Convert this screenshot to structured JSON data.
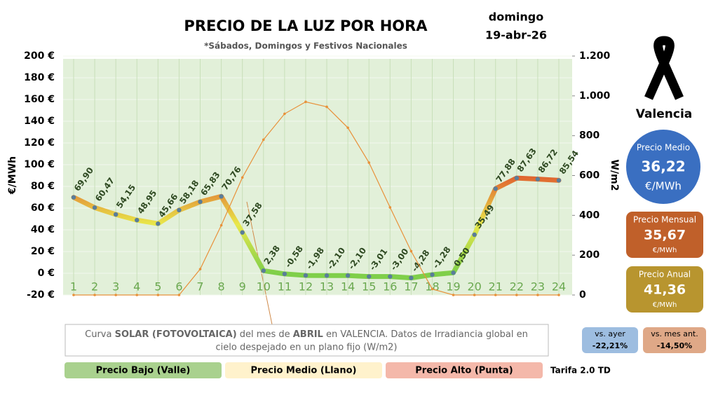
{
  "chart_data": {
    "type": "line",
    "title": "PRECIO DE LA LUZ POR HORA",
    "subtitle": "*Sábados, Domingos y Festivos Nacionales",
    "ylabel": "€/MWh",
    "y2label": "W/m2",
    "categories": [
      "1",
      "2",
      "3",
      "4",
      "5",
      "6",
      "7",
      "8",
      "9",
      "10",
      "11",
      "12",
      "13",
      "14",
      "15",
      "16",
      "17",
      "18",
      "19",
      "20",
      "21",
      "22",
      "23",
      "24"
    ],
    "series": [
      {
        "colors": [
          "#e0602e",
          "#e8e84a",
          "#7fcf4a"
        ],
        "values": [
          69.9,
          60.47,
          54.15,
          48.95,
          45.66,
          58.18,
          65.83,
          70.76,
          37.58,
          2.38,
          -0.58,
          -1.98,
          -2.1,
          -2.1,
          -3.01,
          -3.0,
          -4.28,
          -1.28,
          0.5,
          35.49,
          77.88,
          87.63,
          86.72,
          85.54
        ],
        "value_labels": [
          "69,90",
          "60,47",
          "54,15",
          "48,95",
          "45,66",
          "58,18",
          "65,83",
          "70,76",
          "37,58",
          "2,38",
          "-0,58",
          "-1,98",
          "-2,10",
          "-2,10",
          "-3,01",
          "-3,00",
          "-4,28",
          "-1,28",
          "0,50",
          "35,49",
          "77,88",
          "87,63",
          "86,72",
          "85,54"
        ]
      },
      {
        "axis": "y2",
        "color": "#e8913a",
        "values": [
          0,
          0,
          0,
          0,
          0,
          0,
          130,
          350,
          590,
          780,
          910,
          970,
          945,
          840,
          665,
          440,
          220,
          30,
          0,
          0,
          0,
          0,
          0,
          0
        ]
      }
    ],
    "ylim": [
      -20,
      200
    ],
    "yticks": [
      {
        "value": -20,
        "label": "-20 €"
      },
      {
        "value": 0,
        "label": "0 €"
      },
      {
        "value": 20,
        "label": "20 €"
      },
      {
        "value": 40,
        "label": "40 €"
      },
      {
        "value": 60,
        "label": "60 €"
      },
      {
        "value": 80,
        "label": "80 €"
      },
      {
        "value": 100,
        "label": "100 €"
      },
      {
        "value": 120,
        "label": "120 €"
      },
      {
        "value": 140,
        "label": "140 €"
      },
      {
        "value": 160,
        "label": "160 €"
      },
      {
        "value": 180,
        "label": "180 €"
      },
      {
        "value": 200,
        "label": "200 €"
      }
    ],
    "y2lim": [
      0,
      1200
    ],
    "y2ticks": [
      0,
      200,
      400,
      600,
      800,
      {
        "value": 1000,
        "label": "1.000"
      },
      {
        "value": 1200,
        "label": "1.200"
      }
    ],
    "grid": true
  },
  "date": {
    "weekday": "domingo",
    "day": "19-abr-26"
  },
  "city": "Valencia",
  "stats": [
    {
      "label": "Precio Medio",
      "value": "36,22",
      "unit": "€/MWh",
      "color": "#3a6fc1"
    },
    {
      "label": "Precio Mensual",
      "value": "35,67",
      "unit": "€/MWh",
      "color": "#c0602a"
    },
    {
      "label": "Precio Anual",
      "value": "41,36",
      "unit": "€/MWh",
      "color": "#b8952f"
    }
  ],
  "comparisons": [
    {
      "label": "vs. ayer",
      "value": "-22,21%",
      "color": "#9dbde0"
    },
    {
      "label": "vs. mes ant.",
      "value": "-14,50%",
      "color": "#dfa887"
    }
  ],
  "note": [
    "Curva ",
    "SOLAR (FOTOVOLTAICA)",
    " del mes de ",
    "ABRIL",
    " en VALENCIA. Datos de Irradiancia global en",
    "cielo despejado en un plano fijo (W/m2)"
  ],
  "legend": [
    {
      "label": "Precio Bajo (Valle)",
      "color": "#a9d18e"
    },
    {
      "label": "Precio Medio (Llano)",
      "color": "#fff2cc"
    },
    {
      "label": "Precio Alto (Punta)",
      "color": "#f4b8aa"
    }
  ],
  "tariff": "Tarifa 2.0 TD"
}
